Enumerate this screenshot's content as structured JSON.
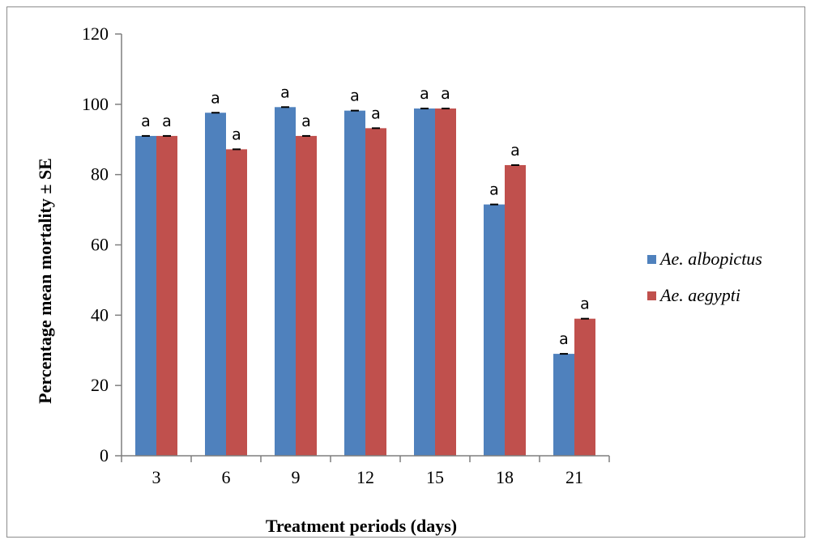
{
  "chart_data": {
    "type": "bar",
    "categories": [
      "3",
      "6",
      "9",
      "12",
      "15",
      "18",
      "21"
    ],
    "series": [
      {
        "name": "Ae. albopictus",
        "color": "#4F81BD",
        "values": [
          91,
          97.6,
          99.2,
          98.2,
          98.8,
          71.5,
          29
        ],
        "labels": [
          "a",
          "a",
          "a",
          "a",
          "a",
          "a",
          "a"
        ]
      },
      {
        "name": "Ae. aegypti",
        "color": "#C0504D",
        "values": [
          91,
          87.2,
          91,
          93.2,
          98.8,
          82.7,
          39
        ],
        "labels": [
          "a",
          "a",
          "a",
          "a",
          "a",
          "a",
          "a"
        ]
      }
    ],
    "yticks": [
      "0",
      "20",
      "40",
      "60",
      "80",
      "100",
      "120"
    ],
    "ylim": [
      0,
      120
    ],
    "xlabel": "Treatment periods (days)",
    "ylabel": "Percentage mean mortality ± SE",
    "grid": false,
    "legend": "right"
  }
}
